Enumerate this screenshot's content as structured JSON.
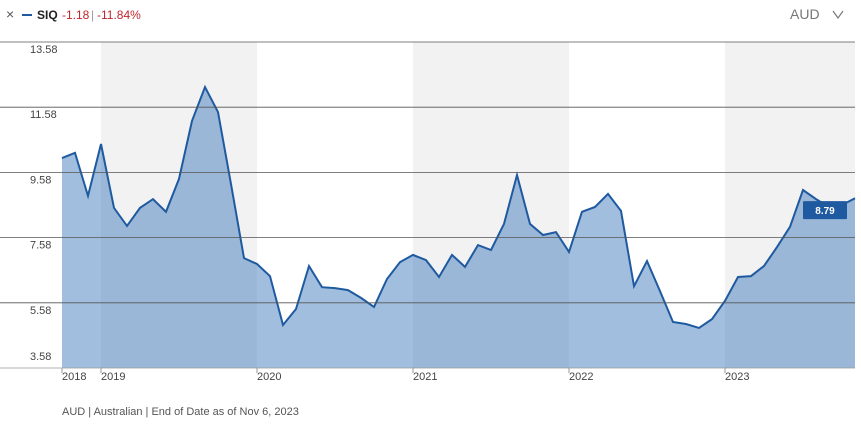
{
  "header": {
    "ticker": "SIQ",
    "change": "-1.18",
    "change_pct": "-11.84%",
    "currency": "AUD"
  },
  "chart_data": {
    "type": "area",
    "categories": [
      "2018",
      null,
      null,
      "2019",
      null,
      null,
      null,
      null,
      null,
      null,
      null,
      null,
      null,
      null,
      null,
      "2020",
      null,
      null,
      null,
      null,
      null,
      null,
      null,
      null,
      null,
      null,
      null,
      "2021",
      null,
      null,
      null,
      null,
      null,
      null,
      null,
      null,
      null,
      null,
      null,
      "2022",
      null,
      null,
      null,
      null,
      null,
      null,
      null,
      null,
      null,
      null,
      null,
      "2023",
      null,
      null,
      null,
      null,
      null,
      null,
      null,
      null,
      null,
      null
    ],
    "values": [
      10.02,
      10.18,
      8.86,
      10.45,
      8.49,
      7.94,
      8.49,
      8.76,
      8.37,
      9.38,
      11.16,
      12.2,
      11.43,
      9.22,
      6.95,
      6.77,
      6.4,
      4.9,
      5.39,
      6.71,
      6.06,
      6.03,
      5.97,
      5.73,
      5.45,
      6.31,
      6.83,
      7.05,
      6.89,
      6.37,
      7.05,
      6.68,
      7.35,
      7.2,
      8.0,
      9.5,
      8.0,
      7.66,
      7.75,
      7.14,
      8.37,
      8.52,
      8.92,
      8.4,
      6.09,
      6.86,
      5.94,
      4.99,
      4.93,
      4.81,
      5.08,
      5.64,
      6.37,
      6.4,
      6.71,
      7.29,
      7.91,
      9.04,
      8.76,
      8.52,
      8.58,
      8.79
    ],
    "color": "#1f5aa0",
    "ylim": [
      3.58,
      13.58
    ],
    "yticks": [
      3.58,
      5.58,
      7.58,
      9.58,
      11.58,
      13.58
    ],
    "grid": true,
    "footnote": "AUD | Australian | End of Date as of Nov 6, 2023"
  }
}
